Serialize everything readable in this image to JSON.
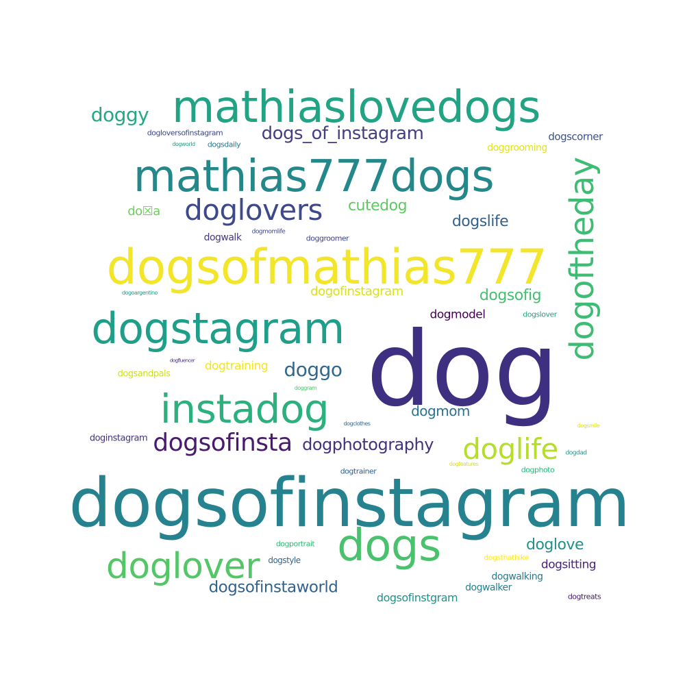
{
  "palette": {
    "dark_purple": "#482878",
    "deep_purple": "#440154",
    "indigo": "#3e4989",
    "slate_blue": "#31688e",
    "teal": "#26828e",
    "green_teal": "#1f9e89",
    "green": "#35b779",
    "light_green": "#6ece58",
    "lime": "#b5de2b",
    "yellow": "#fde725"
  },
  "words": [
    {
      "text": "dog",
      "color": "#3e2f80"
    },
    {
      "text": "dogsofinstagram",
      "color": "#26828e"
    },
    {
      "text": "dogsofmathias777",
      "color": "#f2e52a"
    },
    {
      "text": "mathiaslovedogs",
      "color": "#22a384"
    },
    {
      "text": "mathias777dogs",
      "color": "#24888b"
    },
    {
      "text": "dogstagram",
      "color": "#1f9e89"
    },
    {
      "text": "dogs",
      "color": "#4ac16d"
    },
    {
      "text": "instadog",
      "color": "#2cb17e"
    },
    {
      "text": "doglover",
      "color": "#55c667"
    },
    {
      "text": "dogoftheday",
      "color": "#3fbc73"
    },
    {
      "text": "doglovers",
      "color": "#3e4989"
    },
    {
      "text": "doglife",
      "color": "#b5de2b"
    },
    {
      "text": "dogsofinsta",
      "color": "#481b6d"
    },
    {
      "text": "dogs_of_instagram",
      "color": "#433e85"
    },
    {
      "text": "doggy",
      "color": "#26a784"
    },
    {
      "text": "doggo",
      "color": "#31688e"
    },
    {
      "text": "dogphotography",
      "color": "#46317e"
    },
    {
      "text": "dogsofinstaworld",
      "color": "#33638d"
    },
    {
      "text": "cutedog",
      "color": "#5ec962"
    },
    {
      "text": "dogslife",
      "color": "#34618d"
    },
    {
      "text": "dogsofig",
      "color": "#44bf70"
    },
    {
      "text": "doglove",
      "color": "#21918c"
    },
    {
      "text": "dogmom",
      "color": "#2c728e"
    },
    {
      "text": "dogofinstagram",
      "color": "#d8e219"
    },
    {
      "text": "dogmodel",
      "color": "#440154"
    },
    {
      "text": "dogsitting",
      "color": "#482475"
    },
    {
      "text": "dogtraining",
      "color": "#f0e51f"
    },
    {
      "text": "dogsofinstgram",
      "color": "#21918c"
    },
    {
      "text": "do☒a",
      "color": "#6ece58"
    },
    {
      "text": "dogscorner",
      "color": "#3b528b"
    },
    {
      "text": "doggrooming",
      "color": "#e2e418"
    },
    {
      "text": "dogwalking",
      "color": "#2a788e"
    },
    {
      "text": "dogwalker",
      "color": "#277f8e"
    },
    {
      "text": "dogwalk",
      "color": "#443a83"
    },
    {
      "text": "dogsandpals",
      "color": "#d0e11c"
    },
    {
      "text": "doginstagram",
      "color": "#46337e"
    },
    {
      "text": "dogtrainer",
      "color": "#355f8d"
    },
    {
      "text": "dogphoto",
      "color": "#2fb47c"
    },
    {
      "text": "dogstyle",
      "color": "#32658e"
    },
    {
      "text": "dogportrait",
      "color": "#35b779"
    },
    {
      "text": "dogsthathike",
      "color": "#fde725"
    },
    {
      "text": "dogtreats",
      "color": "#481a6c"
    },
    {
      "text": "dogloversofinstagram",
      "color": "#3f4788"
    },
    {
      "text": "dogsdaily",
      "color": "#2a788e"
    },
    {
      "text": "dogworld",
      "color": "#1fa188"
    },
    {
      "text": "dogmomlife",
      "color": "#3f4788"
    },
    {
      "text": "doggroomer",
      "color": "#404688"
    },
    {
      "text": "dogoargentino",
      "color": "#1f9a8a"
    },
    {
      "text": "dogslover",
      "color": "#21a685"
    },
    {
      "text": "dogfluencer",
      "color": "#472d7b"
    },
    {
      "text": "doggram",
      "color": "#4ec36b"
    },
    {
      "text": "dogclothes",
      "color": "#306a8e"
    },
    {
      "text": "dogsmile",
      "color": "#dde318"
    },
    {
      "text": "dogdad",
      "color": "#1f958b"
    },
    {
      "text": "dogfeatures",
      "color": "#d8e219"
    }
  ]
}
